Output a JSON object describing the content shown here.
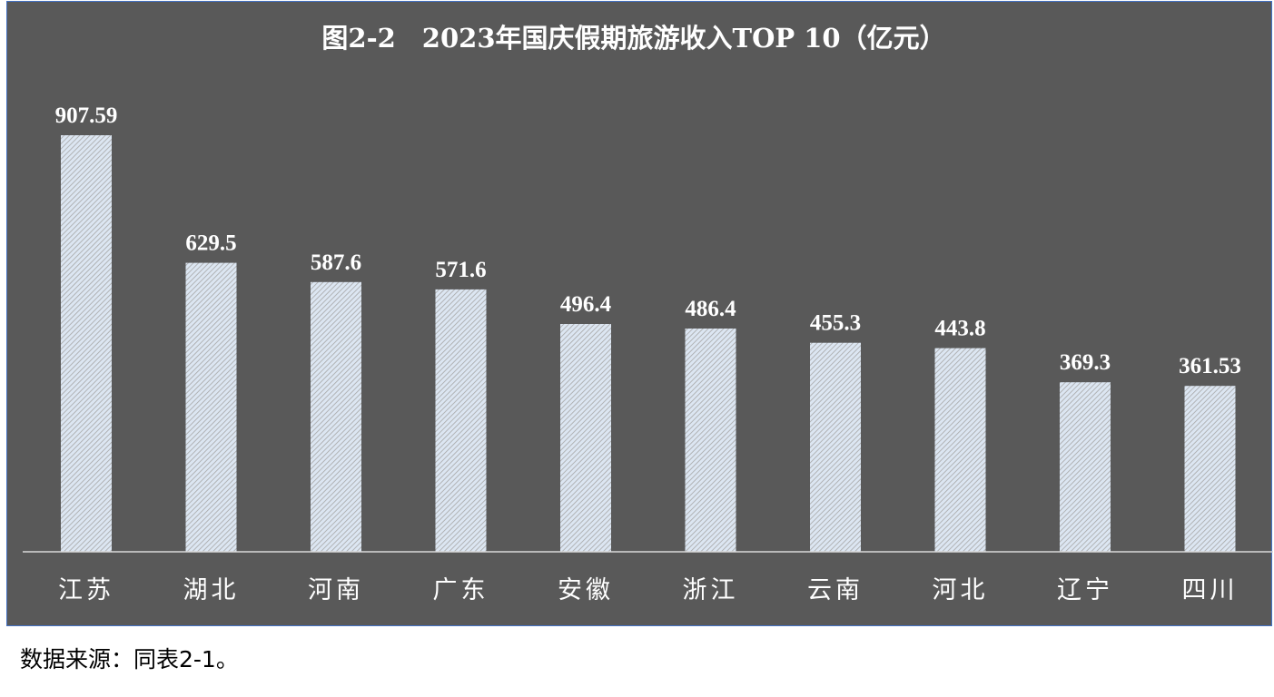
{
  "chart_data": {
    "type": "bar",
    "title": "图2-2　2023年国庆假期旅游收入TOP 10（亿元）",
    "categories": [
      "江苏",
      "湖北",
      "河南",
      "广东",
      "安徽",
      "浙江",
      "云南",
      "河北",
      "辽宁",
      "四川"
    ],
    "values": [
      907.59,
      629.5,
      587.6,
      571.6,
      496.4,
      486.4,
      455.3,
      443.8,
      369.3,
      361.53
    ],
    "value_labels": [
      "907.59",
      "629.5",
      "587.6",
      "571.6",
      "496.4",
      "486.4",
      "455.3",
      "443.8",
      "369.3",
      "361.53"
    ],
    "ylim": [
      0,
      907.59
    ],
    "grid": false,
    "legend": "none",
    "colors": {
      "background": "#595959",
      "bar_fill": "#dce6f2",
      "bar_hatch": "#a6a6a6",
      "text": "#ffffff",
      "frame_border": "#4472c4"
    }
  },
  "footer": {
    "source_note": "数据来源：同表2-1。"
  }
}
